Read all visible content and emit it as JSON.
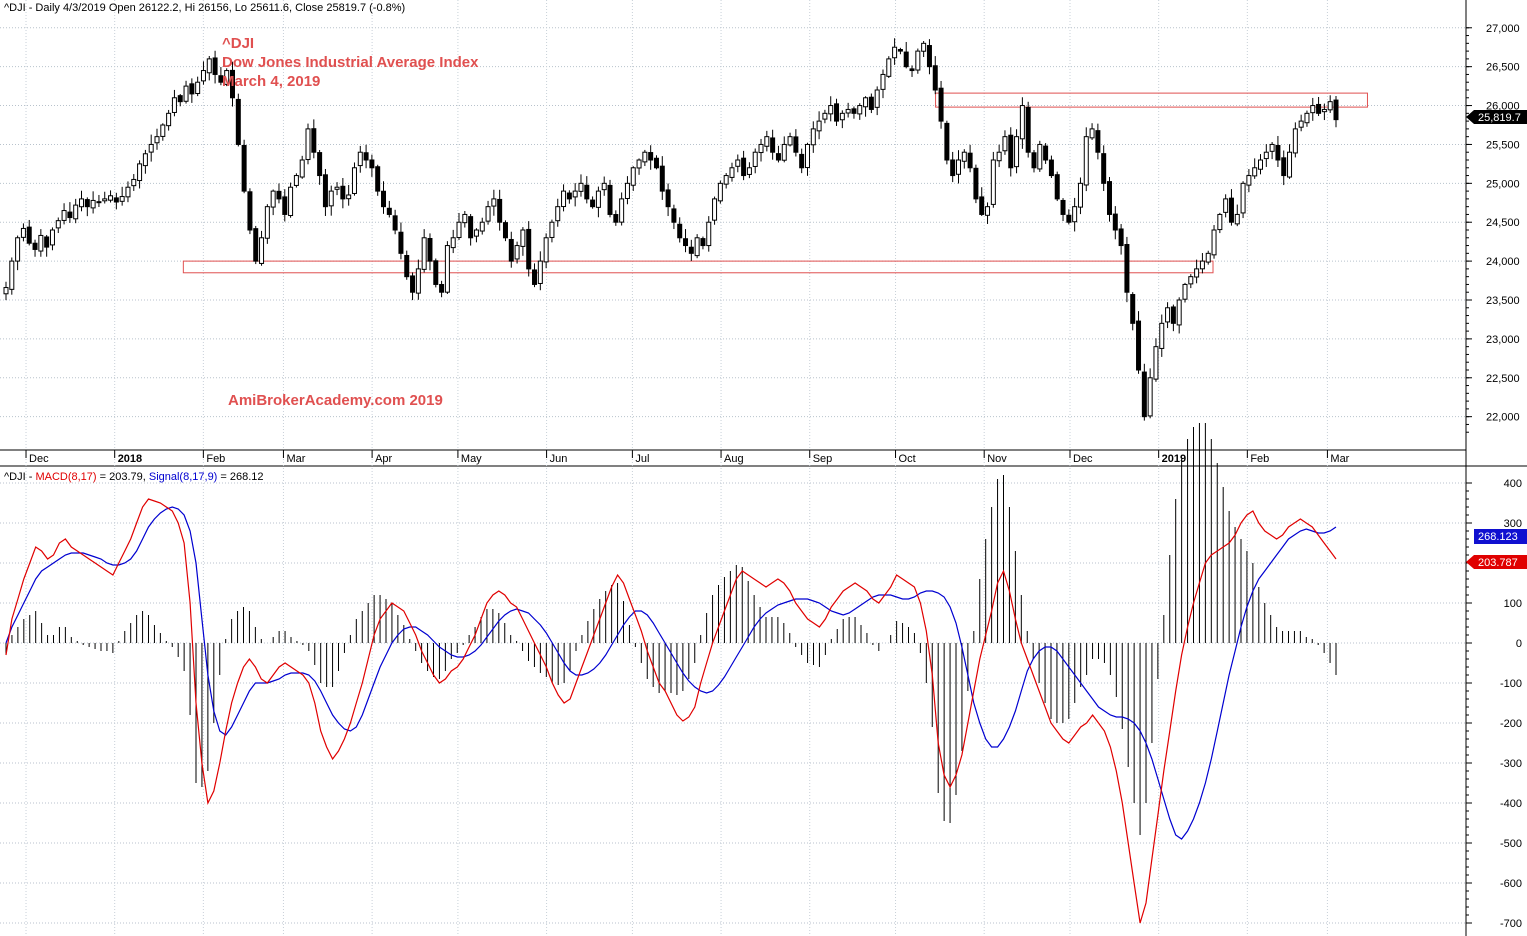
{
  "price_header": "^DJI - Daily 4/3/2019 Open 26122.2, Hi 26156, Lo 25611.6, Close 25819.7 (-0.8%)",
  "annotations": {
    "symbol": "^DJI",
    "name": "Dow Jones Industrial Average Index",
    "date": "March 4, 2019",
    "watermark": "AmiBrokerAcademy.com  2019",
    "color": "#e05050"
  },
  "macd_header": {
    "symbol": "^DJI - ",
    "macd_label": "MACD(8,17)",
    "macd_value": " = 203.79, ",
    "signal_label": "Signal(8,17,9)",
    "signal_value": " = 268.12"
  },
  "last_price_tag": "25,819.7",
  "macd_tags": {
    "signal": "268.123",
    "macd": "203.787"
  },
  "colors": {
    "macd": "#e00000",
    "signal": "#0000d0",
    "box": "#e05050",
    "candle": "#000000"
  },
  "chart_data": [
    {
      "type": "candlestick",
      "title": "^DJI - Daily",
      "x_ticks": [
        "Dec",
        "2018",
        "Feb",
        "Mar",
        "Apr",
        "May",
        "Jun",
        "Jul",
        "Aug",
        "Sep",
        "Oct",
        "Nov",
        "Dec",
        "2019",
        "Feb",
        "Mar"
      ],
      "y_ticks": [
        "27,000",
        "26,500",
        "26,000",
        "25,500",
        "25,000",
        "24,500",
        "24,000",
        "23,500",
        "23,000",
        "22,500",
        "22,000"
      ],
      "ylim": [
        21700,
        27100
      ],
      "support_zone": {
        "from": "2018-01-25",
        "to": "2019-01-20",
        "low": 23850,
        "high": 24000
      },
      "resistance_zone": {
        "from": "2018-10-15",
        "to": "2019-03-15",
        "low": 25980,
        "high": 26160
      },
      "closes": [
        23660,
        24000,
        24300,
        24420,
        24230,
        24150,
        24330,
        24180,
        24400,
        24520,
        24650,
        24560,
        24720,
        24800,
        24700,
        24780,
        24760,
        24800,
        24840,
        24760,
        24830,
        24950,
        25050,
        25250,
        25380,
        25500,
        25600,
        25750,
        25900,
        26100,
        26050,
        26250,
        26150,
        26300,
        26450,
        26600,
        26400,
        26300,
        26450,
        26100,
        25500,
        24900,
        24400,
        24000,
        24300,
        24700,
        24900,
        24800,
        24600,
        24950,
        25100,
        25300,
        25700,
        25400,
        25100,
        24700,
        24900,
        24950,
        24800,
        24850,
        25200,
        25400,
        25300,
        25200,
        24900,
        24700,
        24600,
        24400,
        24100,
        23800,
        23600,
        23900,
        24300,
        24000,
        23700,
        23600,
        24200,
        24300,
        24500,
        24600,
        24300,
        24400,
        24500,
        24700,
        24800,
        24500,
        24300,
        24000,
        24200,
        24400,
        23900,
        23700,
        24000,
        24300,
        24500,
        24700,
        24900,
        24800,
        24900,
        25000,
        24800,
        24700,
        24900,
        25000,
        24600,
        24500,
        24800,
        25000,
        25200,
        25300,
        25400,
        25300,
        25200,
        24900,
        24700,
        24500,
        24300,
        24200,
        24100,
        24300,
        24200,
        24500,
        24800,
        25000,
        25100,
        25200,
        25300,
        25100,
        25200,
        25400,
        25500,
        25600,
        25400,
        25300,
        25500,
        25600,
        25400,
        25200,
        25500,
        25700,
        25800,
        25900,
        26000,
        25800,
        25900,
        25950,
        25900,
        26000,
        26100,
        25950,
        26200,
        26400,
        26600,
        26750,
        26700,
        26500,
        26450,
        26700,
        26800,
        26500,
        26200,
        25800,
        25300,
        25100,
        25300,
        25400,
        25200,
        24800,
        24600,
        24700,
        25300,
        25400,
        25600,
        25200,
        25600,
        26000,
        25400,
        25200,
        25500,
        25300,
        25100,
        24800,
        24600,
        24500,
        24700,
        25000,
        25600,
        25700,
        25400,
        25000,
        24600,
        24400,
        24200,
        23600,
        23200,
        22600,
        22000,
        22500,
        22900,
        23200,
        23400,
        23200,
        23500,
        23700,
        23800,
        23900,
        24000,
        24100,
        24400,
        24600,
        24800,
        24500,
        24600,
        25000,
        25100,
        25200,
        25300,
        25400,
        25500,
        25300,
        25100,
        25400,
        25700,
        25800,
        25900,
        26000,
        25900,
        25950,
        26050,
        25819
      ]
    },
    {
      "type": "macd",
      "title": "MACD(8,17) / Signal(8,17,9)",
      "y_ticks": [
        "400",
        "300",
        "200",
        "100",
        "0",
        "-100",
        "-200",
        "-300",
        "-400",
        "-500",
        "-600",
        "-700"
      ],
      "ylim": [
        -730,
        430
      ],
      "series": [
        {
          "name": "MACD(8,17)",
          "last": 203.79,
          "values": [
            -30,
            60,
            110,
            160,
            200,
            240,
            230,
            210,
            220,
            250,
            260,
            240,
            230,
            220,
            210,
            200,
            190,
            180,
            170,
            200,
            230,
            260,
            300,
            340,
            360,
            355,
            350,
            340,
            330,
            300,
            250,
            100,
            -150,
            -300,
            -400,
            -370,
            -300,
            -220,
            -150,
            -100,
            -60,
            -40,
            -60,
            -90,
            -100,
            -80,
            -60,
            -50,
            -60,
            -70,
            -80,
            -100,
            -150,
            -220,
            -260,
            -290,
            -270,
            -240,
            -200,
            -150,
            -100,
            -40,
            20,
            60,
            80,
            100,
            90,
            80,
            50,
            20,
            -20,
            -50,
            -80,
            -100,
            -90,
            -70,
            -60,
            -40,
            -10,
            20,
            60,
            100,
            120,
            130,
            120,
            100,
            90,
            60,
            30,
            0,
            -30,
            -60,
            -100,
            -130,
            -150,
            -140,
            -100,
            -60,
            -20,
            20,
            60,
            100,
            140,
            170,
            150,
            110,
            70,
            30,
            -20,
            -60,
            -100,
            -120,
            -150,
            -180,
            -195,
            -185,
            -160,
            -100,
            -50,
            0,
            40,
            80,
            120,
            160,
            180,
            170,
            160,
            150,
            140,
            150,
            160,
            150,
            130,
            100,
            80,
            60,
            50,
            40,
            60,
            90,
            110,
            130,
            140,
            150,
            140,
            130,
            110,
            100,
            120,
            140,
            170,
            160,
            150,
            140,
            100,
            30,
            -80,
            -250,
            -330,
            -360,
            -330,
            -280,
            -200,
            -120,
            -40,
            20,
            80,
            150,
            180,
            130,
            60,
            0,
            -40,
            -80,
            -120,
            -160,
            -200,
            -220,
            -240,
            -250,
            -230,
            -210,
            -200,
            -180,
            -200,
            -220,
            -260,
            -320,
            -400,
            -500,
            -600,
            -700,
            -650,
            -540,
            -430,
            -320,
            -220,
            -120,
            -30,
            40,
            100,
            150,
            200,
            220,
            230,
            240,
            250,
            270,
            300,
            320,
            330,
            300,
            280,
            270,
            260,
            270,
            290,
            300,
            310,
            300,
            290,
            270,
            250,
            230,
            210
          ]
        },
        {
          "name": "Signal(8,17,9)",
          "last": 268.12,
          "values": [
            0,
            40,
            70,
            100,
            130,
            160,
            180,
            190,
            200,
            210,
            220,
            225,
            225,
            225,
            220,
            215,
            210,
            200,
            195,
            195,
            200,
            210,
            230,
            260,
            290,
            310,
            325,
            335,
            340,
            335,
            320,
            280,
            200,
            60,
            -80,
            -170,
            -220,
            -230,
            -210,
            -180,
            -150,
            -120,
            -100,
            -100,
            -100,
            -95,
            -90,
            -80,
            -75,
            -75,
            -75,
            -80,
            -95,
            -120,
            -150,
            -180,
            -200,
            -215,
            -220,
            -210,
            -180,
            -140,
            -100,
            -60,
            -30,
            0,
            20,
            35,
            40,
            40,
            30,
            20,
            5,
            -10,
            -20,
            -30,
            -35,
            -35,
            -30,
            -20,
            -5,
            15,
            35,
            55,
            70,
            80,
            85,
            80,
            75,
            60,
            45,
            25,
            0,
            -25,
            -50,
            -70,
            -80,
            -80,
            -75,
            -65,
            -50,
            -30,
            -5,
            20,
            45,
            65,
            80,
            80,
            70,
            50,
            25,
            0,
            -25,
            -50,
            -75,
            -95,
            -110,
            -120,
            -125,
            -120,
            -105,
            -85,
            -60,
            -35,
            -10,
            15,
            40,
            60,
            75,
            85,
            95,
            100,
            105,
            110,
            110,
            110,
            105,
            100,
            90,
            80,
            75,
            70,
            75,
            85,
            95,
            105,
            115,
            120,
            120,
            120,
            115,
            110,
            110,
            115,
            125,
            130,
            130,
            125,
            115,
            90,
            50,
            -10,
            -80,
            -150,
            -200,
            -240,
            -260,
            -260,
            -240,
            -210,
            -170,
            -120,
            -70,
            -40,
            -20,
            -10,
            -10,
            -20,
            -40,
            -60,
            -80,
            -100,
            -120,
            -140,
            -160,
            -170,
            -180,
            -185,
            -185,
            -190,
            -200,
            -220,
            -250,
            -290,
            -340,
            -390,
            -440,
            -480,
            -490,
            -470,
            -440,
            -400,
            -350,
            -290,
            -220,
            -150,
            -80,
            -20,
            40,
            90,
            130,
            160,
            180,
            200,
            220,
            240,
            260,
            270,
            280,
            285,
            280,
            275,
            275,
            280,
            290,
            295,
            300,
            300,
            298,
            290,
            280,
            270
          ]
        }
      ]
    }
  ]
}
